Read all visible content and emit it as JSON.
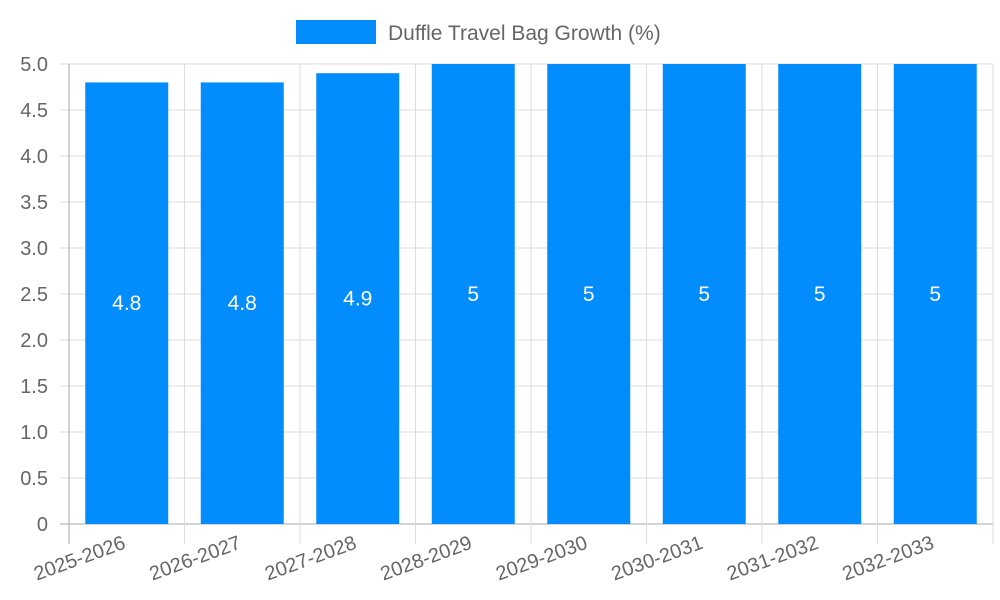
{
  "chart_data": {
    "type": "bar",
    "title": "",
    "categories": [
      "2025-2026",
      "2026-2027",
      "2027-2028",
      "2028-2029",
      "2029-2030",
      "2030-2031",
      "2031-2032",
      "2032-2033"
    ],
    "series": [
      {
        "name": "Duffle Travel Bag Growth (%)",
        "values": [
          4.8,
          4.8,
          4.9,
          5,
          5,
          5,
          5,
          5
        ],
        "color": "#038cfc"
      }
    ],
    "data_labels": [
      "4.8",
      "4.8",
      "4.9",
      "5",
      "5",
      "5",
      "5",
      "5"
    ],
    "xlabel": "",
    "ylabel": "",
    "ylim": [
      0,
      5
    ],
    "yticks": [
      "0",
      "0.5",
      "1.0",
      "1.5",
      "2.0",
      "2.5",
      "3.0",
      "3.5",
      "4.0",
      "4.5",
      "5.0"
    ],
    "grid": true,
    "legend_position": "top-center"
  }
}
